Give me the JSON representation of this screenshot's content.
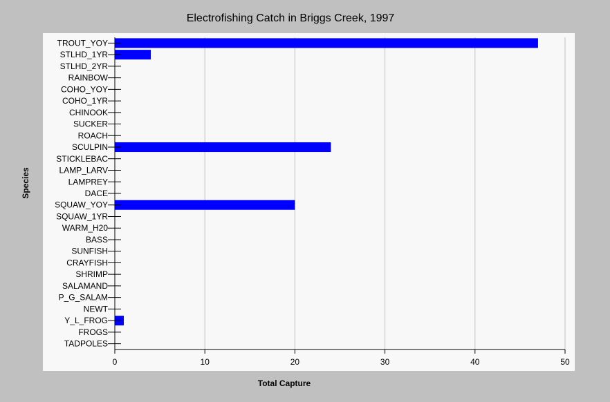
{
  "chart_data": {
    "type": "bar",
    "orientation": "horizontal",
    "title": "Electrofishing Catch in Briggs Creek, 1997",
    "xlabel": "Total Capture",
    "ylabel": "Species",
    "xlim": [
      0,
      50
    ],
    "xticks": [
      0,
      10,
      20,
      30,
      40,
      50
    ],
    "grid": "vertical",
    "categories": [
      "TROUT_YOY",
      "STLHD_1YR",
      "STLHD_2YR",
      "RAINBOW",
      "COHO_YOY",
      "COHO_1YR",
      "CHINOOK",
      "SUCKER",
      "ROACH",
      "SCULPIN",
      "STICKLEBAC",
      "LAMP_LARV",
      "LAMPREY",
      "DACE",
      "SQUAW_YOY",
      "SQUAW_1YR",
      "WARM_H20",
      "BASS",
      "SUNFISH",
      "CRAYFISH",
      "SHRIMP",
      "SALAMAND",
      "P_G_SALAM",
      "NEWT",
      "Y_L_FROG",
      "FROGS",
      "TADPOLES"
    ],
    "values": [
      47,
      4,
      0,
      0,
      0,
      0,
      0,
      0,
      0,
      24,
      0,
      0,
      0,
      0,
      20,
      0,
      0,
      0,
      0,
      0,
      0,
      0,
      0,
      0,
      1,
      0,
      0
    ],
    "bar_color": "#0000ff"
  }
}
